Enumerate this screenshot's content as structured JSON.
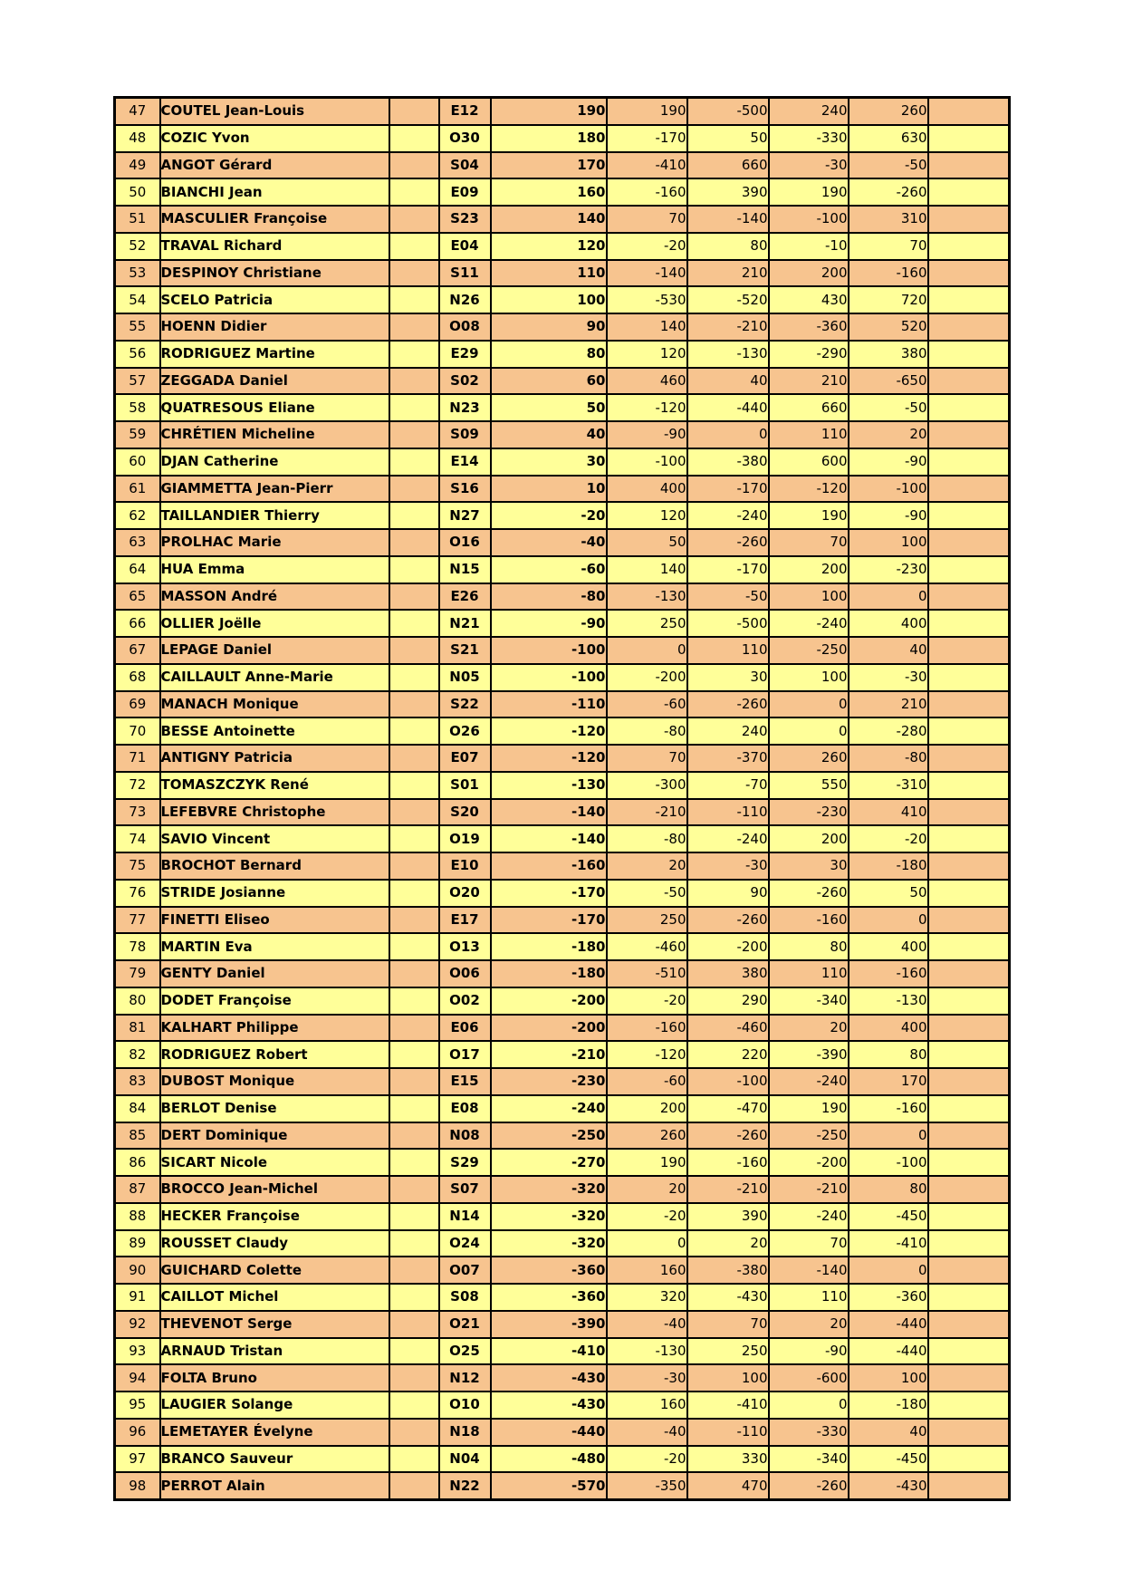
{
  "page": {
    "background": "#FFFFFF"
  },
  "table": {
    "description": "ranking-results-table",
    "colors": {
      "row_orange": "#F7C48F",
      "row_yellow": "#FFFF99",
      "border": "#000000",
      "text": "#000000"
    },
    "rows": [
      {
        "rank": "47",
        "name": "COUTEL Jean-Louis",
        "code": "E12",
        "score": "190",
        "d1": "190",
        "d2": "-500",
        "d3": "240",
        "d4": "260",
        "shade": "orange"
      },
      {
        "rank": "48",
        "name": "COZIC Yvon",
        "code": "O30",
        "score": "180",
        "d1": "-170",
        "d2": "50",
        "d3": "-330",
        "d4": "630",
        "shade": "yellow"
      },
      {
        "rank": "49",
        "name": "ANGOT Gérard",
        "code": "S04",
        "score": "170",
        "d1": "-410",
        "d2": "660",
        "d3": "-30",
        "d4": "-50",
        "shade": "orange"
      },
      {
        "rank": "50",
        "name": "BIANCHI Jean",
        "code": "E09",
        "score": "160",
        "d1": "-160",
        "d2": "390",
        "d3": "190",
        "d4": "-260",
        "shade": "yellow"
      },
      {
        "rank": "51",
        "name": "MASCULIER Françoise",
        "code": "S23",
        "score": "140",
        "d1": "70",
        "d2": "-140",
        "d3": "-100",
        "d4": "310",
        "shade": "orange"
      },
      {
        "rank": "52",
        "name": "TRAVAL Richard",
        "code": "E04",
        "score": "120",
        "d1": "-20",
        "d2": "80",
        "d3": "-10",
        "d4": "70",
        "shade": "yellow"
      },
      {
        "rank": "53",
        "name": "DESPINOY Christiane",
        "code": "S11",
        "score": "110",
        "d1": "-140",
        "d2": "210",
        "d3": "200",
        "d4": "-160",
        "shade": "orange"
      },
      {
        "rank": "54",
        "name": "SCELO Patricia",
        "code": "N26",
        "score": "100",
        "d1": "-530",
        "d2": "-520",
        "d3": "430",
        "d4": "720",
        "shade": "yellow"
      },
      {
        "rank": "55",
        "name": "HOENN Didier",
        "code": "O08",
        "score": "90",
        "d1": "140",
        "d2": "-210",
        "d3": "-360",
        "d4": "520",
        "shade": "orange"
      },
      {
        "rank": "56",
        "name": "RODRIGUEZ Martine",
        "code": "E29",
        "score": "80",
        "d1": "120",
        "d2": "-130",
        "d3": "-290",
        "d4": "380",
        "shade": "yellow"
      },
      {
        "rank": "57",
        "name": "ZEGGADA Daniel",
        "code": "S02",
        "score": "60",
        "d1": "460",
        "d2": "40",
        "d3": "210",
        "d4": "-650",
        "shade": "orange"
      },
      {
        "rank": "58",
        "name": "QUATRESOUS Eliane",
        "code": "N23",
        "score": "50",
        "d1": "-120",
        "d2": "-440",
        "d3": "660",
        "d4": "-50",
        "shade": "yellow"
      },
      {
        "rank": "59",
        "name": "CHRÉTIEN Micheline",
        "code": "S09",
        "score": "40",
        "d1": "-90",
        "d2": "0",
        "d3": "110",
        "d4": "20",
        "shade": "orange"
      },
      {
        "rank": "60",
        "name": "DJAN Catherine",
        "code": "E14",
        "score": "30",
        "d1": "-100",
        "d2": "-380",
        "d3": "600",
        "d4": "-90",
        "shade": "yellow"
      },
      {
        "rank": "61",
        "name": "GIAMMETTA Jean-Pierr",
        "code": "S16",
        "score": "10",
        "d1": "400",
        "d2": "-170",
        "d3": "-120",
        "d4": "-100",
        "shade": "orange"
      },
      {
        "rank": "62",
        "name": "TAILLANDIER Thierry",
        "code": "N27",
        "score": "-20",
        "d1": "120",
        "d2": "-240",
        "d3": "190",
        "d4": "-90",
        "shade": "yellow"
      },
      {
        "rank": "63",
        "name": "PROLHAC Marie",
        "code": "O16",
        "score": "-40",
        "d1": "50",
        "d2": "-260",
        "d3": "70",
        "d4": "100",
        "shade": "orange"
      },
      {
        "rank": "64",
        "name": "HUA Emma",
        "code": "N15",
        "score": "-60",
        "d1": "140",
        "d2": "-170",
        "d3": "200",
        "d4": "-230",
        "shade": "yellow"
      },
      {
        "rank": "65",
        "name": "MASSON André",
        "code": "E26",
        "score": "-80",
        "d1": "-130",
        "d2": "-50",
        "d3": "100",
        "d4": "0",
        "shade": "orange"
      },
      {
        "rank": "66",
        "name": "OLLIER Joëlle",
        "code": "N21",
        "score": "-90",
        "d1": "250",
        "d2": "-500",
        "d3": "-240",
        "d4": "400",
        "shade": "yellow"
      },
      {
        "rank": "67",
        "name": "LEPAGE Daniel",
        "code": "S21",
        "score": "-100",
        "d1": "0",
        "d2": "110",
        "d3": "-250",
        "d4": "40",
        "shade": "orange"
      },
      {
        "rank": "68",
        "name": "CAILLAULT Anne-Marie",
        "code": "N05",
        "score": "-100",
        "d1": "-200",
        "d2": "30",
        "d3": "100",
        "d4": "-30",
        "shade": "yellow"
      },
      {
        "rank": "69",
        "name": "MANACH Monique",
        "code": "S22",
        "score": "-110",
        "d1": "-60",
        "d2": "-260",
        "d3": "0",
        "d4": "210",
        "shade": "orange"
      },
      {
        "rank": "70",
        "name": "BESSE Antoinette",
        "code": "O26",
        "score": "-120",
        "d1": "-80",
        "d2": "240",
        "d3": "0",
        "d4": "-280",
        "shade": "yellow"
      },
      {
        "rank": "71",
        "name": "ANTIGNY Patricia",
        "code": "E07",
        "score": "-120",
        "d1": "70",
        "d2": "-370",
        "d3": "260",
        "d4": "-80",
        "shade": "orange"
      },
      {
        "rank": "72",
        "name": "TOMASZCZYK René",
        "code": "S01",
        "score": "-130",
        "d1": "-300",
        "d2": "-70",
        "d3": "550",
        "d4": "-310",
        "shade": "yellow"
      },
      {
        "rank": "73",
        "name": "LEFEBVRE Christophe",
        "code": "S20",
        "score": "-140",
        "d1": "-210",
        "d2": "-110",
        "d3": "-230",
        "d4": "410",
        "shade": "orange"
      },
      {
        "rank": "74",
        "name": "SAVIO Vincent",
        "code": "O19",
        "score": "-140",
        "d1": "-80",
        "d2": "-240",
        "d3": "200",
        "d4": "-20",
        "shade": "yellow"
      },
      {
        "rank": "75",
        "name": "BROCHOT Bernard",
        "code": "E10",
        "score": "-160",
        "d1": "20",
        "d2": "-30",
        "d3": "30",
        "d4": "-180",
        "shade": "orange"
      },
      {
        "rank": "76",
        "name": "STRIDE Josianne",
        "code": "O20",
        "score": "-170",
        "d1": "-50",
        "d2": "90",
        "d3": "-260",
        "d4": "50",
        "shade": "yellow"
      },
      {
        "rank": "77",
        "name": "FINETTI Eliseo",
        "code": "E17",
        "score": "-170",
        "d1": "250",
        "d2": "-260",
        "d3": "-160",
        "d4": "0",
        "shade": "orange"
      },
      {
        "rank": "78",
        "name": "MARTIN Eva",
        "code": "O13",
        "score": "-180",
        "d1": "-460",
        "d2": "-200",
        "d3": "80",
        "d4": "400",
        "shade": "yellow"
      },
      {
        "rank": "79",
        "name": "GENTY Daniel",
        "code": "O06",
        "score": "-180",
        "d1": "-510",
        "d2": "380",
        "d3": "110",
        "d4": "-160",
        "shade": "orange"
      },
      {
        "rank": "80",
        "name": "DODET Françoise",
        "code": "O02",
        "score": "-200",
        "d1": "-20",
        "d2": "290",
        "d3": "-340",
        "d4": "-130",
        "shade": "yellow"
      },
      {
        "rank": "81",
        "name": "KALHART Philippe",
        "code": "E06",
        "score": "-200",
        "d1": "-160",
        "d2": "-460",
        "d3": "20",
        "d4": "400",
        "shade": "orange"
      },
      {
        "rank": "82",
        "name": "RODRIGUEZ Robert",
        "code": "O17",
        "score": "-210",
        "d1": "-120",
        "d2": "220",
        "d3": "-390",
        "d4": "80",
        "shade": "yellow"
      },
      {
        "rank": "83",
        "name": "DUBOST Monique",
        "code": "E15",
        "score": "-230",
        "d1": "-60",
        "d2": "-100",
        "d3": "-240",
        "d4": "170",
        "shade": "orange"
      },
      {
        "rank": "84",
        "name": "BERLOT Denise",
        "code": "E08",
        "score": "-240",
        "d1": "200",
        "d2": "-470",
        "d3": "190",
        "d4": "-160",
        "shade": "yellow"
      },
      {
        "rank": "85",
        "name": "DERT Dominique",
        "code": "N08",
        "score": "-250",
        "d1": "260",
        "d2": "-260",
        "d3": "-250",
        "d4": "0",
        "shade": "orange"
      },
      {
        "rank": "86",
        "name": "SICART Nicole",
        "code": "S29",
        "score": "-270",
        "d1": "190",
        "d2": "-160",
        "d3": "-200",
        "d4": "-100",
        "shade": "yellow"
      },
      {
        "rank": "87",
        "name": "BROCCO Jean-Michel",
        "code": "S07",
        "score": "-320",
        "d1": "20",
        "d2": "-210",
        "d3": "-210",
        "d4": "80",
        "shade": "orange"
      },
      {
        "rank": "88",
        "name": "HECKER Françoise",
        "code": "N14",
        "score": "-320",
        "d1": "-20",
        "d2": "390",
        "d3": "-240",
        "d4": "-450",
        "shade": "yellow"
      },
      {
        "rank": "89",
        "name": "ROUSSET Claudy",
        "code": "O24",
        "score": "-320",
        "d1": "0",
        "d2": "20",
        "d3": "70",
        "d4": "-410",
        "shade": "yellow"
      },
      {
        "rank": "90",
        "name": "GUICHARD Colette",
        "code": "O07",
        "score": "-360",
        "d1": "160",
        "d2": "-380",
        "d3": "-140",
        "d4": "0",
        "shade": "orange"
      },
      {
        "rank": "91",
        "name": "CAILLOT Michel",
        "code": "S08",
        "score": "-360",
        "d1": "320",
        "d2": "-430",
        "d3": "110",
        "d4": "-360",
        "shade": "yellow"
      },
      {
        "rank": "92",
        "name": "THEVENOT Serge",
        "code": "O21",
        "score": "-390",
        "d1": "-40",
        "d2": "70",
        "d3": "20",
        "d4": "-440",
        "shade": "orange"
      },
      {
        "rank": "93",
        "name": "ARNAUD Tristan",
        "code": "O25",
        "score": "-410",
        "d1": "-130",
        "d2": "250",
        "d3": "-90",
        "d4": "-440",
        "shade": "yellow"
      },
      {
        "rank": "94",
        "name": "FOLTA Bruno",
        "code": "N12",
        "score": "-430",
        "d1": "-30",
        "d2": "100",
        "d3": "-600",
        "d4": "100",
        "shade": "orange"
      },
      {
        "rank": "95",
        "name": "LAUGIER Solange",
        "code": "O10",
        "score": "-430",
        "d1": "160",
        "d2": "-410",
        "d3": "0",
        "d4": "-180",
        "shade": "yellow"
      },
      {
        "rank": "96",
        "name": "LEMETAYER Évelyne",
        "code": "N18",
        "score": "-440",
        "d1": "-40",
        "d2": "-110",
        "d3": "-330",
        "d4": "40",
        "shade": "orange"
      },
      {
        "rank": "97",
        "name": "BRANCO Sauveur",
        "code": "N04",
        "score": "-480",
        "d1": "-20",
        "d2": "330",
        "d3": "-340",
        "d4": "-450",
        "shade": "yellow"
      },
      {
        "rank": "98",
        "name": "PERROT Alain",
        "code": "N22",
        "score": "-570",
        "d1": "-350",
        "d2": "470",
        "d3": "-260",
        "d4": "-430",
        "shade": "orange"
      }
    ]
  }
}
